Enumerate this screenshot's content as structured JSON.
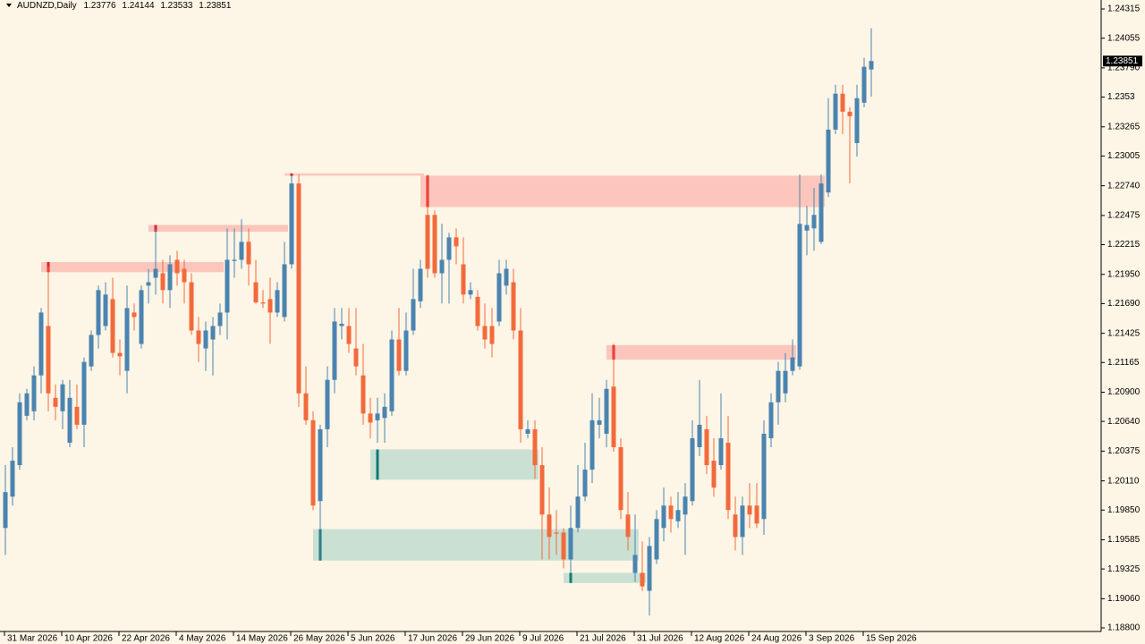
{
  "chart_data": {
    "type": "candlestick",
    "symbol": "AUDNZD,Daily",
    "up_color": "#4a84b0",
    "down_color": "#f26a3c",
    "background": "#fdf5e6",
    "ylim": [
      1.18768,
      1.24395
    ],
    "yticks": [
      1.24315,
      1.24055,
      {
        "value": 1.2379,
        "label": "1.23790"
      },
      1.2353,
      1.23265,
      1.23005,
      {
        "value": 1.2274,
        "label": "1.22740"
      },
      1.22475,
      1.22215,
      {
        "value": 1.2195,
        "label": "1.21950"
      },
      {
        "value": 1.2169,
        "label": "1.21690"
      },
      1.21425,
      1.21165,
      {
        "value": 1.209,
        "label": "1.20900"
      },
      {
        "value": 1.2064,
        "label": "1.20640"
      },
      1.20375,
      {
        "value": 1.2011,
        "label": "1.20110"
      },
      {
        "value": 1.1985,
        "label": "1.19850"
      },
      1.19585,
      1.19325,
      {
        "value": 1.1906,
        "label": "1.19060"
      },
      {
        "value": 1.188,
        "label": "1.18800"
      }
    ],
    "categories": [
      "31 Mar 2026",
      null,
      null,
      null,
      null,
      null,
      null,
      null,
      "10 Apr 2026",
      null,
      null,
      null,
      null,
      null,
      null,
      null,
      "22 Apr 2026",
      null,
      null,
      null,
      null,
      null,
      null,
      null,
      "4 May 2026",
      null,
      null,
      null,
      null,
      null,
      null,
      null,
      "14 May 2026",
      null,
      null,
      null,
      null,
      null,
      null,
      null,
      "26 May 2026",
      null,
      null,
      null,
      null,
      null,
      null,
      null,
      "5 Jun 2026",
      null,
      null,
      null,
      null,
      null,
      null,
      null,
      "17 Jun 2026",
      null,
      null,
      null,
      null,
      null,
      null,
      null,
      "29 Jun 2026",
      null,
      null,
      null,
      null,
      null,
      null,
      null,
      "9 Jul 2026",
      null,
      null,
      null,
      null,
      null,
      null,
      null,
      "21 Jul 2026",
      null,
      null,
      null,
      null,
      null,
      null,
      null,
      "31 Jul 2026",
      null,
      null,
      null,
      null,
      null,
      null,
      null,
      "12 Aug 2026",
      null,
      null,
      null,
      null,
      null,
      null,
      null,
      "24 Aug 2026",
      null,
      null,
      null,
      null,
      null,
      null,
      null,
      "3 Sep 2026",
      null,
      null,
      null,
      null,
      null,
      null,
      null,
      "15 Sep 2026",
      null
    ],
    "candles": [
      [
        1.1969,
        1.2025,
        1.1945,
        1.2001
      ],
      [
        1.1997,
        1.2041,
        1.1989,
        1.2029
      ],
      [
        1.2025,
        1.2089,
        1.2021,
        1.2081
      ],
      [
        1.2069,
        1.2093,
        1.2065,
        1.2089
      ],
      [
        1.2073,
        1.2113,
        1.2065,
        1.2105
      ],
      [
        1.2105,
        1.2165,
        1.2089,
        1.2161
      ],
      [
        1.2149,
        1.2202,
        1.2073,
        1.2089
      ],
      [
        1.2085,
        1.2097,
        1.2065,
        1.2077
      ],
      [
        1.2073,
        1.2101,
        1.2057,
        1.2097
      ],
      [
        1.2045,
        1.2101,
        1.2041,
        1.2085
      ],
      [
        1.2077,
        1.2097,
        1.2057,
        1.2061
      ],
      [
        1.2061,
        1.2121,
        1.2041,
        1.2117
      ],
      [
        1.2113,
        1.2145,
        1.2109,
        1.2141
      ],
      [
        1.2141,
        1.2185,
        1.2129,
        1.2181
      ],
      [
        1.2149,
        1.2188,
        1.2145,
        1.2177
      ],
      [
        1.2173,
        1.2192,
        1.2121,
        1.2125
      ],
      [
        1.2125,
        1.2137,
        1.2105,
        1.2122
      ],
      [
        1.2109,
        1.2185,
        1.2089,
        1.2165
      ],
      [
        1.2161,
        1.2169,
        1.2145,
        1.2157
      ],
      [
        1.2133,
        1.2185,
        1.2129,
        1.2181
      ],
      [
        1.2185,
        1.22,
        1.2169,
        1.2188
      ],
      [
        1.2192,
        1.2236,
        1.2177,
        1.22
      ],
      [
        1.2196,
        1.2208,
        1.2169,
        1.2181
      ],
      [
        1.2181,
        1.2212,
        1.2165,
        1.2204
      ],
      [
        1.2208,
        1.2216,
        1.2185,
        1.2196
      ],
      [
        1.22,
        1.2208,
        1.2169,
        1.2188
      ],
      [
        1.2188,
        1.2196,
        1.2141,
        1.2145
      ],
      [
        1.2145,
        1.2157,
        1.2117,
        1.2133
      ],
      [
        1.2129,
        1.2153,
        1.2109,
        1.2145
      ],
      [
        1.2137,
        1.2157,
        1.2105,
        1.2149
      ],
      [
        1.2149,
        1.2169,
        1.2141,
        1.2161
      ],
      [
        1.2161,
        1.2236,
        1.2137,
        1.2208
      ],
      [
        1.2207,
        1.2236,
        1.2192,
        1.2208
      ],
      [
        1.2208,
        1.2244,
        1.22,
        1.2224
      ],
      [
        1.2224,
        1.2236,
        1.2185,
        1.2204
      ],
      [
        1.2188,
        1.2208,
        1.2169,
        1.217
      ],
      [
        1.217,
        1.2181,
        1.2165,
        1.2169
      ],
      [
        1.2173,
        1.2192,
        1.2133,
        1.2161
      ],
      [
        1.2161,
        1.2188,
        1.2157,
        1.2181
      ],
      [
        1.2157,
        1.2224,
        1.2153,
        1.2204
      ],
      [
        1.2204,
        1.2284,
        1.22,
        1.2276
      ],
      [
        1.2276,
        1.2284,
        1.2077,
        1.2089
      ],
      [
        1.2089,
        1.2113,
        1.2061,
        1.2065
      ],
      [
        1.2065,
        1.2073,
        1.1985,
        1.1989
      ],
      [
        1.1993,
        1.2061,
        1.1941,
        1.2057
      ],
      [
        1.2057,
        1.2113,
        1.2041,
        1.2101
      ],
      [
        1.2101,
        1.2165,
        1.2089,
        1.2153
      ],
      [
        1.2149,
        1.2165,
        1.2137,
        1.2151
      ],
      [
        1.2149,
        1.2165,
        1.2125,
        1.2133
      ],
      [
        1.2129,
        1.2165,
        1.2105,
        1.2113
      ],
      [
        1.2105,
        1.2133,
        1.2061,
        1.2071
      ],
      [
        1.2071,
        1.2085,
        1.2049,
        1.2063
      ],
      [
        1.2065,
        1.2085,
        1.2045,
        1.2071
      ],
      [
        1.2067,
        1.2089,
        1.2045,
        1.2077
      ],
      [
        1.2073,
        1.2145,
        1.2069,
        1.2137
      ],
      [
        1.2137,
        1.2165,
        1.2105,
        1.2109
      ],
      [
        1.2109,
        1.2161,
        1.2105,
        1.2145
      ],
      [
        1.2145,
        1.22,
        1.2141,
        1.2173
      ],
      [
        1.2171,
        1.2208,
        1.2165,
        1.22
      ],
      [
        1.2248,
        1.2284,
        1.2192,
        1.22
      ],
      [
        1.2248,
        1.2252,
        1.2192,
        1.2196
      ],
      [
        1.2196,
        1.224,
        1.2169,
        1.2208
      ],
      [
        1.2208,
        1.2232,
        1.2169,
        1.2228
      ],
      [
        1.2228,
        1.2236,
        1.2204,
        1.222
      ],
      [
        1.2204,
        1.2228,
        1.2169,
        1.2177
      ],
      [
        1.2177,
        1.2188,
        1.2173,
        1.2181
      ],
      [
        1.2175,
        1.2181,
        1.2145,
        1.2149
      ],
      [
        1.2149,
        1.2169,
        1.2129,
        1.2137
      ],
      [
        1.2149,
        1.2165,
        1.2121,
        1.2133
      ],
      [
        1.2153,
        1.2208,
        1.2149,
        1.2196
      ],
      [
        1.2185,
        1.2208,
        1.2177,
        1.22
      ],
      [
        1.2188,
        1.22,
        1.2137,
        1.2145
      ],
      [
        1.2145,
        1.2165,
        1.2045,
        1.2057
      ],
      [
        1.2053,
        1.2065,
        1.2049,
        1.2057
      ],
      [
        1.2057,
        1.2065,
        1.2013,
        1.2025
      ],
      [
        1.2025,
        1.2041,
        1.1941,
        1.1981
      ],
      [
        1.1981,
        1.2005,
        1.1941,
        1.1961
      ],
      [
        1.1965,
        1.1985,
        1.1945,
        1.1964
      ],
      [
        1.1965,
        1.1969,
        1.1933,
        1.1941
      ],
      [
        1.1941,
        1.1989,
        1.1929,
        1.1969
      ],
      [
        1.1969,
        1.2025,
        1.1965,
        1.1997
      ],
      [
        1.1997,
        1.2045,
        1.1993,
        1.2021
      ],
      [
        1.2021,
        1.2089,
        1.2009,
        1.2065
      ],
      [
        1.2061,
        1.2085,
        1.2049,
        1.2065
      ],
      [
        1.2053,
        1.2101,
        1.2041,
        1.2093
      ],
      [
        1.2095,
        1.2133,
        1.2037,
        1.2041
      ],
      [
        1.2041,
        1.2049,
        1.1977,
        1.1985
      ],
      [
        1.1981,
        1.2001,
        1.1949,
        1.1961
      ],
      [
        1.1929,
        1.1981,
        1.1921,
        1.1945
      ],
      [
        1.1929,
        1.1957,
        1.1913,
        1.1917
      ],
      [
        1.1913,
        1.1961,
        1.1891,
        1.1953
      ],
      [
        1.1941,
        1.1985,
        1.1937,
        1.1977
      ],
      [
        1.1969,
        1.2005,
        1.1957,
        1.1989
      ],
      [
        1.1989,
        1.1997,
        1.1965,
        1.1977
      ],
      [
        1.1975,
        1.2001,
        1.1969,
        1.1985
      ],
      [
        1.1981,
        1.2009,
        1.1945,
        1.1997
      ],
      [
        1.1993,
        1.2065,
        1.1989,
        1.2049
      ],
      [
        1.2041,
        1.2101,
        1.2033,
        1.2061
      ],
      [
        1.2057,
        1.2069,
        1.2017,
        1.2025
      ],
      [
        1.2029,
        1.2049,
        1.1997,
        1.2005
      ],
      [
        1.2025,
        1.2089,
        1.2021,
        1.2049
      ],
      [
        1.2045,
        1.2069,
        1.1977,
        1.1985
      ],
      [
        1.1981,
        1.1997,
        1.1949,
        1.1961
      ],
      [
        1.1961,
        1.1997,
        1.1945,
        1.1989
      ],
      [
        1.1989,
        1.2009,
        1.1969,
        1.1981
      ],
      [
        1.1989,
        1.2009,
        1.1969,
        1.1973
      ],
      [
        1.1977,
        1.2065,
        1.1963,
        1.2053
      ],
      [
        1.2049,
        1.2089,
        1.2041,
        1.2081
      ],
      [
        1.2081,
        1.2117,
        1.2061,
        1.2109
      ],
      [
        1.2089,
        1.2125,
        1.2081,
        1.2109
      ],
      [
        1.2109,
        1.2137,
        1.2105,
        1.2121
      ],
      [
        1.2113,
        1.2284,
        1.211,
        1.224
      ],
      [
        1.2234,
        1.2256,
        1.2212,
        1.2239
      ],
      [
        1.2236,
        1.2272,
        1.2216,
        1.2248
      ],
      [
        1.2224,
        1.2284,
        1.2222,
        1.2276
      ],
      [
        1.2268,
        1.2352,
        1.2264,
        1.2324
      ],
      [
        1.2324,
        1.2364,
        1.232,
        1.2356
      ],
      [
        1.2356,
        1.2364,
        1.232,
        1.234
      ],
      [
        1.234,
        1.2344,
        1.2276,
        1.2336
      ],
      [
        1.2312,
        1.2364,
        1.23,
        1.2352
      ],
      [
        1.2348,
        1.2388,
        1.2344,
        1.238
      ],
      [
        1.23776,
        1.24144,
        1.23533,
        1.23851
      ]
    ],
    "zones": [
      {
        "from": 6,
        "to": 30,
        "top": 1.2206,
        "bottom": 1.2197,
        "color": "#fcc6bc",
        "edge": "#e8202a"
      },
      {
        "from": 21,
        "to": 39,
        "top": 1.2239,
        "bottom": 1.2233,
        "color": "#fcc6bc",
        "edge": "#e8202a"
      },
      {
        "from": 40,
        "to": 58,
        "top": 1.2285,
        "bottom": 1.2283,
        "color": "#fcc6bc",
        "edge": "#e8202a"
      },
      {
        "from": 59,
        "to": 114,
        "top": 1.2283,
        "bottom": 1.2255,
        "color": "#fcc6bc",
        "edge": "#e8202a"
      },
      {
        "from": 85,
        "to": 110,
        "top": 1.2132,
        "bottom": 1.2119,
        "color": "#fcc6bc",
        "edge": "#e8202a"
      },
      {
        "from": 52,
        "to": 74,
        "top": 1.2039,
        "bottom": 1.2012,
        "color": "#c9e0d3",
        "edge": "#127a74"
      },
      {
        "from": 44,
        "to": 88,
        "top": 1.1968,
        "bottom": 1.194,
        "color": "#c9e0d3",
        "edge": "#127a74"
      },
      {
        "from": 79,
        "to": 89,
        "top": 1.1929,
        "bottom": 1.192,
        "color": "#c9e0d3",
        "edge": "#127a74"
      }
    ]
  }
}
